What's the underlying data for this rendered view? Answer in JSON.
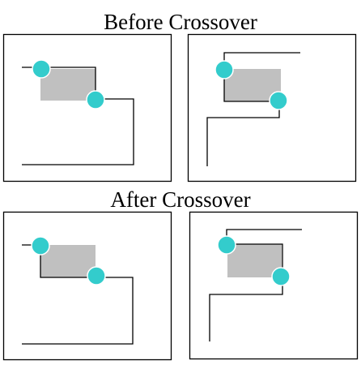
{
  "titles": {
    "before": "Before Crossover",
    "after": "After Crossover"
  },
  "colors": {
    "background": "#ffffff",
    "frame": "#000000",
    "path": "#000000",
    "obstacle": "#c0c0c0",
    "waypoint": "#33cccc",
    "waypoint_outline": "#ffffff"
  }
}
